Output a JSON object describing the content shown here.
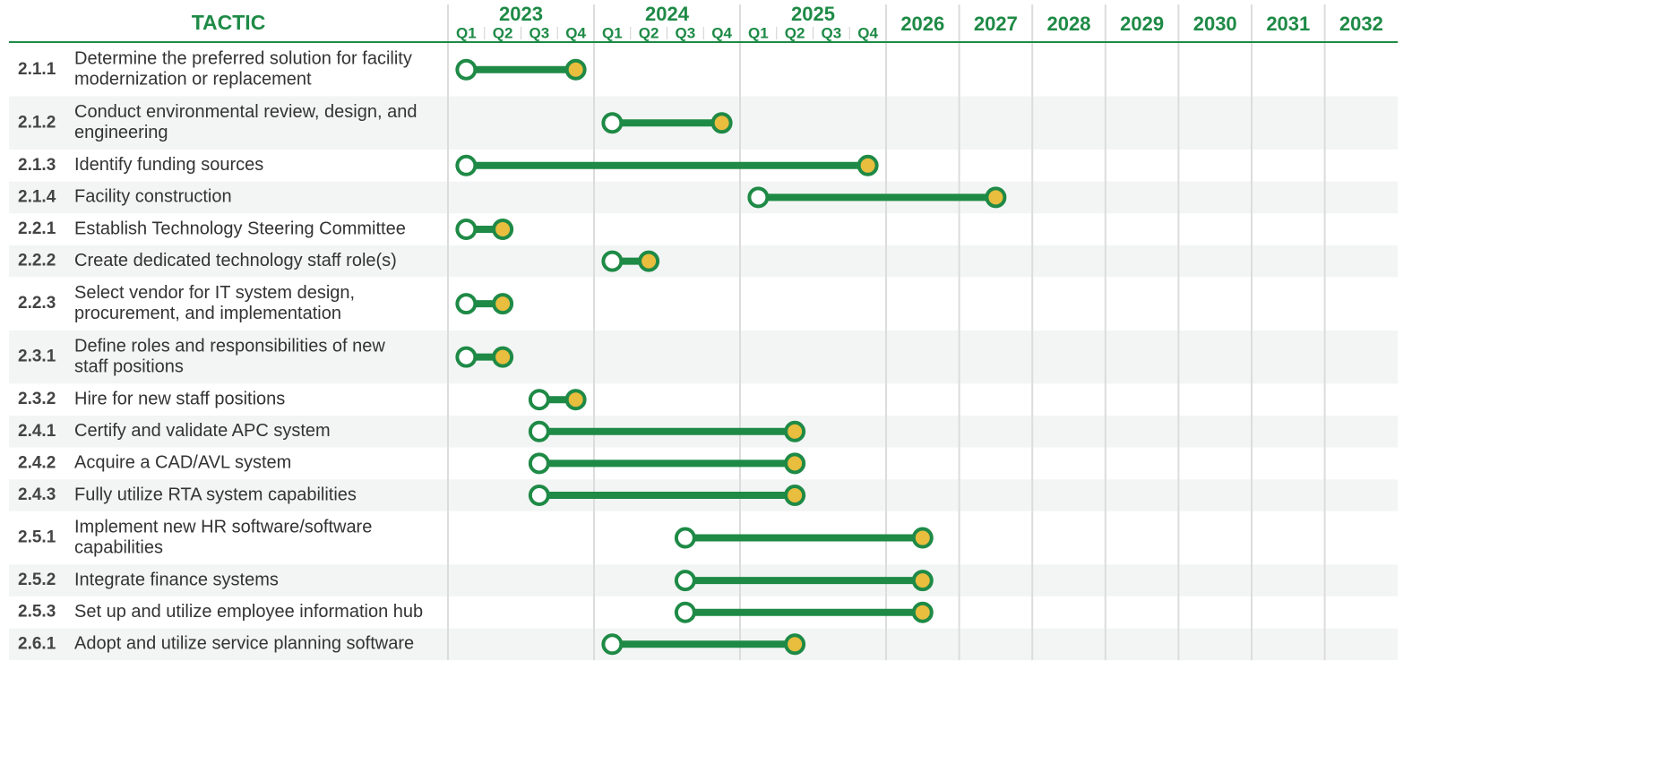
{
  "chart_data": {
    "type": "gantt",
    "column_title": "TACTIC",
    "xlim": [
      2023,
      2033
    ],
    "xticks": [
      2023,
      2024,
      2025,
      2026,
      2027,
      2028,
      2029,
      2030,
      2031,
      2032
    ],
    "quarters": [
      "Q1",
      "Q2",
      "Q3",
      "Q4"
    ],
    "quarter_years": 3,
    "colors": {
      "bar": "#1e8a46",
      "start": "#ffffff",
      "end": "#e9bd3e",
      "stripe": "#f3f5f4"
    },
    "tasks": [
      {
        "id": "2.1.1",
        "name": [
          "Determine the preferred solution for facility",
          "modernization or replacement"
        ],
        "start": 2023,
        "end": 2023.75
      },
      {
        "id": "2.1.2",
        "name": [
          "Conduct environmental review, design, and",
          "engineering"
        ],
        "start": 2024,
        "end": 2024.75
      },
      {
        "id": "2.1.3",
        "name": [
          "Identify funding sources"
        ],
        "start": 2023,
        "end": 2025.75
      },
      {
        "id": "2.1.4",
        "name": [
          "Facility construction"
        ],
        "start": 2025,
        "end": 2027
      },
      {
        "id": "2.2.1",
        "name": [
          "Establish Technology Steering Committee"
        ],
        "start": 2023,
        "end": 2023.25
      },
      {
        "id": "2.2.2",
        "name": [
          "Create dedicated technology staff role(s)"
        ],
        "start": 2024,
        "end": 2024.25
      },
      {
        "id": "2.2.3",
        "name": [
          "Select vendor for IT system design,",
          "procurement, and implementation"
        ],
        "start": 2023,
        "end": 2023.25
      },
      {
        "id": "2.3.1",
        "name": [
          "Define roles and responsibilities of new",
          "staff positions"
        ],
        "start": 2023,
        "end": 2023.25
      },
      {
        "id": "2.3.2",
        "name": [
          "Hire for new staff positions"
        ],
        "start": 2023.5,
        "end": 2023.75
      },
      {
        "id": "2.4.1",
        "name": [
          "Certify and validate APC system"
        ],
        "start": 2023.5,
        "end": 2025.25
      },
      {
        "id": "2.4.2",
        "name": [
          "Acquire a CAD/AVL system"
        ],
        "start": 2023.5,
        "end": 2025.25
      },
      {
        "id": "2.4.3",
        "name": [
          "Fully utilize RTA system capabilities"
        ],
        "start": 2023.5,
        "end": 2025.25
      },
      {
        "id": "2.5.1",
        "name": [
          "Implement new HR software/software",
          "capabilities"
        ],
        "start": 2024.5,
        "end": 2026
      },
      {
        "id": "2.5.2",
        "name": [
          "Integrate finance systems"
        ],
        "start": 2024.5,
        "end": 2026
      },
      {
        "id": "2.5.3",
        "name": [
          "Set up and utilize employee information hub"
        ],
        "start": 2024.5,
        "end": 2026
      },
      {
        "id": "2.6.1",
        "name": [
          "Adopt and utilize service planning software"
        ],
        "start": 2024,
        "end": 2025.25
      }
    ]
  }
}
